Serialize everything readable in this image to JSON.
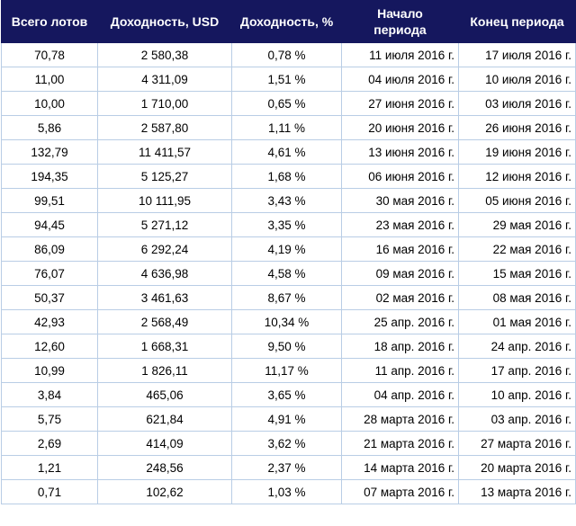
{
  "table": {
    "headers": {
      "total_lots": "Всего лотов",
      "profit_usd": "Доходность, USD",
      "profit_pct": "Доходность, %",
      "period_start_l1": "Начало",
      "period_start_l2": "периода",
      "period_end": "Конец периода"
    },
    "rows": [
      [
        "70,78",
        "2 580,38",
        "0,78 %",
        "11 июля 2016 г.",
        "17 июля 2016 г."
      ],
      [
        "11,00",
        "4 311,09",
        "1,51 %",
        "04 июля 2016 г.",
        "10 июля 2016 г."
      ],
      [
        "10,00",
        "1 710,00",
        "0,65 %",
        "27 июня 2016 г.",
        "03 июля 2016 г."
      ],
      [
        "5,86",
        "2 587,80",
        "1,11 %",
        "20 июня 2016 г.",
        "26 июня 2016 г."
      ],
      [
        "132,79",
        "11 411,57",
        "4,61 %",
        "13 июня 2016 г.",
        "19 июня 2016 г."
      ],
      [
        "194,35",
        "5 125,27",
        "1,68 %",
        "06 июня 2016 г.",
        "12 июня 2016 г."
      ],
      [
        "99,51",
        "10 111,95",
        "3,43 %",
        "30 мая 2016 г.",
        "05 июня 2016 г."
      ],
      [
        "94,45",
        "5 271,12",
        "3,35 %",
        "23 мая 2016 г.",
        "29 мая 2016 г."
      ],
      [
        "86,09",
        "6 292,24",
        "4,19 %",
        "16 мая 2016 г.",
        "22 мая 2016 г."
      ],
      [
        "76,07",
        "4 636,98",
        "4,58 %",
        "09 мая 2016 г.",
        "15 мая 2016 г."
      ],
      [
        "50,37",
        "3 461,63",
        "8,67 %",
        "02 мая 2016 г.",
        "08 мая 2016 г."
      ],
      [
        "42,93",
        "2 568,49",
        "10,34 %",
        "25 апр. 2016 г.",
        "01 мая 2016 г."
      ],
      [
        "12,60",
        "1 668,31",
        "9,50 %",
        "18 апр. 2016 г.",
        "24 апр. 2016 г."
      ],
      [
        "10,99",
        "1 826,11",
        "11,17 %",
        "11 апр. 2016 г.",
        "17 апр. 2016 г."
      ],
      [
        "3,84",
        "465,06",
        "3,65 %",
        "04 апр. 2016 г.",
        "10 апр. 2016 г."
      ],
      [
        "5,75",
        "621,84",
        "4,91 %",
        "28 марта 2016 г.",
        "03 апр. 2016 г."
      ],
      [
        "2,69",
        "414,09",
        "3,62 %",
        "21 марта 2016 г.",
        "27 марта 2016 г."
      ],
      [
        "1,21",
        "248,56",
        "2,37 %",
        "14 марта 2016 г.",
        "20 марта 2016 г."
      ],
      [
        "0,71",
        "102,62",
        "1,03 %",
        "07 марта 2016 г.",
        "13 марта 2016 г."
      ]
    ]
  }
}
